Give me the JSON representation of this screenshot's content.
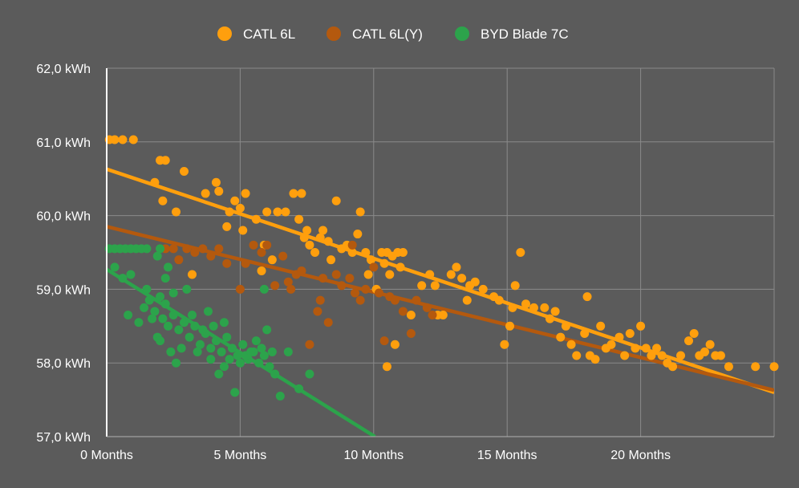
{
  "colors": {
    "background": "#5b5b5b",
    "grid": "#8a8a8a",
    "axis": "#ffffff",
    "text": "#ffffff"
  },
  "chart_data": {
    "type": "scatter",
    "title": "",
    "xlabel": "",
    "ylabel": "",
    "xlim": [
      0,
      25
    ],
    "ylim": [
      57.0,
      62.0
    ],
    "x_ticks": [
      0,
      5,
      10,
      15,
      20
    ],
    "x_tick_labels": [
      "0 Months",
      "5 Months",
      "10 Months",
      "15 Months",
      "20 Months"
    ],
    "y_ticks": [
      57,
      58,
      59,
      60,
      61,
      62
    ],
    "y_tick_labels": [
      "57,0 kWh",
      "58,0 kWh",
      "59,0 kWh",
      "60,0 kWh",
      "61,0 kWh",
      "62,0 kWh"
    ],
    "grid": true,
    "legend_position": "top",
    "series": [
      {
        "name": "CATL 6L",
        "color": "#ff9f0d",
        "trend": [
          [
            0,
            60.63
          ],
          [
            25,
            57.6
          ]
        ],
        "points": [
          [
            0.1,
            61.03
          ],
          [
            0.3,
            61.03
          ],
          [
            0.6,
            61.03
          ],
          [
            1.0,
            61.03
          ],
          [
            1.8,
            60.45
          ],
          [
            2.0,
            60.75
          ],
          [
            2.2,
            60.75
          ],
          [
            2.1,
            60.2
          ],
          [
            2.6,
            60.05
          ],
          [
            2.9,
            60.6
          ],
          [
            3.2,
            59.2
          ],
          [
            3.7,
            60.3
          ],
          [
            4.1,
            60.45
          ],
          [
            4.2,
            60.33
          ],
          [
            4.6,
            60.05
          ],
          [
            4.8,
            60.2
          ],
          [
            5.0,
            60.1
          ],
          [
            5.1,
            59.8
          ],
          [
            5.2,
            60.3
          ],
          [
            5.6,
            59.95
          ],
          [
            5.9,
            59.6
          ],
          [
            6.0,
            60.05
          ],
          [
            6.4,
            60.05
          ],
          [
            6.2,
            59.4
          ],
          [
            6.7,
            60.05
          ],
          [
            7.0,
            60.3
          ],
          [
            7.3,
            60.3
          ],
          [
            7.2,
            59.95
          ],
          [
            7.4,
            59.7
          ],
          [
            7.5,
            59.8
          ],
          [
            7.6,
            59.6
          ],
          [
            7.8,
            59.5
          ],
          [
            8.0,
            59.7
          ],
          [
            8.1,
            59.8
          ],
          [
            8.3,
            59.65
          ],
          [
            8.4,
            59.4
          ],
          [
            8.6,
            60.2
          ],
          [
            8.8,
            59.55
          ],
          [
            9.0,
            59.6
          ],
          [
            9.2,
            59.5
          ],
          [
            9.4,
            59.75
          ],
          [
            9.5,
            60.05
          ],
          [
            9.7,
            59.5
          ],
          [
            9.8,
            59.2
          ],
          [
            9.9,
            59.4
          ],
          [
            10.1,
            59.0
          ],
          [
            10.3,
            59.5
          ],
          [
            10.4,
            59.35
          ],
          [
            10.5,
            59.5
          ],
          [
            10.6,
            59.2
          ],
          [
            10.7,
            59.45
          ],
          [
            10.9,
            59.5
          ],
          [
            11.0,
            59.3
          ],
          [
            11.1,
            59.5
          ],
          [
            10.8,
            58.25
          ],
          [
            11.4,
            58.65
          ],
          [
            11.8,
            59.05
          ],
          [
            12.1,
            59.2
          ],
          [
            12.3,
            59.05
          ],
          [
            12.4,
            58.65
          ],
          [
            12.6,
            58.65
          ],
          [
            12.9,
            59.2
          ],
          [
            13.1,
            59.3
          ],
          [
            13.3,
            59.15
          ],
          [
            13.6,
            59.05
          ],
          [
            13.8,
            59.1
          ],
          [
            14.1,
            59.0
          ],
          [
            14.5,
            58.9
          ],
          [
            14.7,
            58.85
          ],
          [
            14.9,
            58.25
          ],
          [
            15.1,
            58.5
          ],
          [
            15.2,
            58.75
          ],
          [
            15.3,
            59.05
          ],
          [
            15.5,
            59.5
          ],
          [
            15.7,
            58.8
          ],
          [
            16.0,
            58.75
          ],
          [
            16.4,
            58.75
          ],
          [
            16.6,
            58.6
          ],
          [
            16.8,
            58.7
          ],
          [
            17.0,
            58.35
          ],
          [
            17.2,
            58.5
          ],
          [
            17.4,
            58.25
          ],
          [
            17.6,
            58.1
          ],
          [
            17.9,
            58.4
          ],
          [
            18.1,
            58.1
          ],
          [
            18.3,
            58.05
          ],
          [
            18.5,
            58.5
          ],
          [
            18.7,
            58.2
          ],
          [
            18.9,
            58.25
          ],
          [
            19.2,
            58.35
          ],
          [
            19.4,
            58.1
          ],
          [
            19.6,
            58.4
          ],
          [
            19.8,
            58.2
          ],
          [
            20.0,
            58.5
          ],
          [
            20.2,
            58.2
          ],
          [
            20.4,
            58.1
          ],
          [
            20.6,
            58.2
          ],
          [
            20.8,
            58.1
          ],
          [
            21.0,
            58.0
          ],
          [
            21.2,
            57.95
          ],
          [
            21.5,
            58.1
          ],
          [
            21.8,
            58.3
          ],
          [
            22.0,
            58.4
          ],
          [
            22.2,
            58.1
          ],
          [
            22.4,
            58.15
          ],
          [
            22.6,
            58.25
          ],
          [
            22.8,
            58.1
          ],
          [
            23.0,
            58.1
          ],
          [
            23.3,
            57.95
          ],
          [
            24.3,
            57.95
          ],
          [
            25.0,
            57.95
          ],
          [
            10.5,
            57.95
          ],
          [
            4.5,
            59.85
          ],
          [
            5.8,
            59.25
          ],
          [
            13.5,
            58.85
          ],
          [
            18.0,
            58.9
          ]
        ]
      },
      {
        "name": "CATL 6L(Y)",
        "color": "#b4590e",
        "trend": [
          [
            0,
            59.85
          ],
          [
            25,
            57.63
          ]
        ],
        "points": [
          [
            2.2,
            59.55
          ],
          [
            2.5,
            59.55
          ],
          [
            2.7,
            59.4
          ],
          [
            3.0,
            59.55
          ],
          [
            3.3,
            59.5
          ],
          [
            3.6,
            59.55
          ],
          [
            3.9,
            59.45
          ],
          [
            4.2,
            59.55
          ],
          [
            4.5,
            59.35
          ],
          [
            5.0,
            59.0
          ],
          [
            5.2,
            59.35
          ],
          [
            5.5,
            59.6
          ],
          [
            5.8,
            59.5
          ],
          [
            6.0,
            59.6
          ],
          [
            6.3,
            59.05
          ],
          [
            6.6,
            59.45
          ],
          [
            6.9,
            59.0
          ],
          [
            7.1,
            59.2
          ],
          [
            7.3,
            59.25
          ],
          [
            7.6,
            58.25
          ],
          [
            7.9,
            58.7
          ],
          [
            8.1,
            59.15
          ],
          [
            8.3,
            58.55
          ],
          [
            8.6,
            59.2
          ],
          [
            8.8,
            59.05
          ],
          [
            9.1,
            59.15
          ],
          [
            9.3,
            58.95
          ],
          [
            9.5,
            58.85
          ],
          [
            9.7,
            59.0
          ],
          [
            10.0,
            59.3
          ],
          [
            10.2,
            58.95
          ],
          [
            10.4,
            58.3
          ],
          [
            10.6,
            58.9
          ],
          [
            10.8,
            58.85
          ],
          [
            11.1,
            58.7
          ],
          [
            11.4,
            58.4
          ],
          [
            11.6,
            58.85
          ],
          [
            12.0,
            58.75
          ],
          [
            12.2,
            58.65
          ],
          [
            8.0,
            58.85
          ],
          [
            6.8,
            59.1
          ],
          [
            9.2,
            59.6
          ]
        ]
      },
      {
        "name": "BYD Blade 7C",
        "color": "#2ca34b",
        "trend": [
          [
            0,
            59.27
          ],
          [
            10.05,
            57.0
          ]
        ],
        "points": [
          [
            0.1,
            59.55
          ],
          [
            0.3,
            59.55
          ],
          [
            0.5,
            59.55
          ],
          [
            0.7,
            59.55
          ],
          [
            0.9,
            59.55
          ],
          [
            1.1,
            59.55
          ],
          [
            1.3,
            59.55
          ],
          [
            1.5,
            59.55
          ],
          [
            0.3,
            59.3
          ],
          [
            0.6,
            59.15
          ],
          [
            0.9,
            59.2
          ],
          [
            0.8,
            58.65
          ],
          [
            1.2,
            58.55
          ],
          [
            1.4,
            58.75
          ],
          [
            1.6,
            58.85
          ],
          [
            1.8,
            58.7
          ],
          [
            2.0,
            58.9
          ],
          [
            2.2,
            58.8
          ],
          [
            1.7,
            58.6
          ],
          [
            1.9,
            58.35
          ],
          [
            2.1,
            58.6
          ],
          [
            2.3,
            58.5
          ],
          [
            2.5,
            58.65
          ],
          [
            2.7,
            58.45
          ],
          [
            2.9,
            58.55
          ],
          [
            3.1,
            58.35
          ],
          [
            3.3,
            58.5
          ],
          [
            3.5,
            58.25
          ],
          [
            3.7,
            58.4
          ],
          [
            3.9,
            58.2
          ],
          [
            4.1,
            58.3
          ],
          [
            4.3,
            58.15
          ],
          [
            4.5,
            58.35
          ],
          [
            4.7,
            58.2
          ],
          [
            4.9,
            58.1
          ],
          [
            5.1,
            58.25
          ],
          [
            5.3,
            58.05
          ],
          [
            5.5,
            58.15
          ],
          [
            5.7,
            58.0
          ],
          [
            5.9,
            58.1
          ],
          [
            6.1,
            57.95
          ],
          [
            6.3,
            57.85
          ],
          [
            6.5,
            57.55
          ],
          [
            6.8,
            58.15
          ],
          [
            7.2,
            57.65
          ],
          [
            7.6,
            57.85
          ],
          [
            2.0,
            59.55
          ],
          [
            2.3,
            59.3
          ],
          [
            1.9,
            59.45
          ],
          [
            2.4,
            58.15
          ],
          [
            2.6,
            58.0
          ],
          [
            2.8,
            58.2
          ],
          [
            3.0,
            59.0
          ],
          [
            3.4,
            58.15
          ],
          [
            3.8,
            58.7
          ],
          [
            4.0,
            58.5
          ],
          [
            4.2,
            57.85
          ],
          [
            4.4,
            57.95
          ],
          [
            4.6,
            58.05
          ],
          [
            4.8,
            57.6
          ],
          [
            5.0,
            58.0
          ],
          [
            5.2,
            58.1
          ],
          [
            5.6,
            58.3
          ],
          [
            5.8,
            58.2
          ],
          [
            6.0,
            58.45
          ],
          [
            5.9,
            59.0
          ],
          [
            2.2,
            59.15
          ],
          [
            2.5,
            58.95
          ],
          [
            3.6,
            58.45
          ],
          [
            4.4,
            58.55
          ],
          [
            1.5,
            59.0
          ],
          [
            2.0,
            58.3
          ],
          [
            3.2,
            58.65
          ],
          [
            3.9,
            58.05
          ],
          [
            6.2,
            58.15
          ],
          [
            5.4,
            58.15
          ]
        ]
      }
    ]
  }
}
